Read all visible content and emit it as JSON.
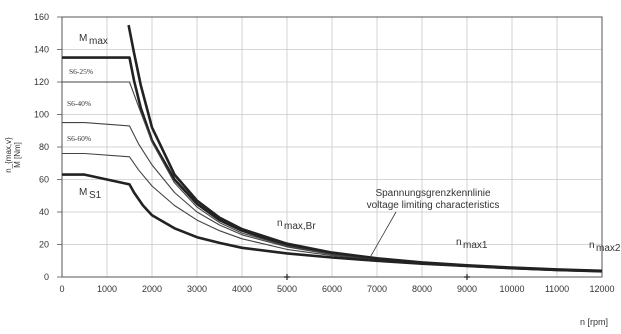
{
  "chart_data": {
    "type": "line",
    "xlabel": "n [rpm]",
    "ylabel": "M [Nm]",
    "ylabel_extra": "n_{max,v}",
    "xlim": [
      0,
      12000
    ],
    "ylim": [
      0,
      160
    ],
    "xticks": [
      0,
      1000,
      2000,
      3000,
      4000,
      5000,
      6000,
      7000,
      8000,
      9000,
      10000,
      11000,
      12000
    ],
    "yticks": [
      0,
      20,
      40,
      60,
      80,
      100,
      120,
      140,
      160
    ],
    "grid": true,
    "colors": {
      "heavy": "#222222",
      "light": "#444444",
      "grid": "#c8c8c8"
    },
    "series": [
      {
        "name": "M_max",
        "heavy": true,
        "x": [
          0,
          1500,
          1600,
          1750,
          2000,
          2500,
          3000,
          3500,
          4000,
          5000,
          6000,
          7000,
          8000,
          9000,
          10000,
          11000,
          12000
        ],
        "y": [
          135,
          135,
          121,
          104,
          84,
          60,
          45,
          35,
          28.5,
          19.5,
          14.5,
          11,
          8.5,
          6.9,
          5.5,
          4.4,
          3.6
        ]
      },
      {
        "name": "S6-25%",
        "heavy": false,
        "x": [
          0,
          1500,
          1700,
          2000,
          2500,
          3000,
          3500,
          4000,
          5000,
          6000,
          7000,
          8000,
          9000,
          10000,
          11000,
          12000
        ],
        "y": [
          120,
          120,
          105,
          83,
          58,
          43,
          33.5,
          27,
          19,
          14,
          11,
          8.5,
          6.9,
          5.5,
          4.4,
          3.6
        ]
      },
      {
        "name": "S6-40%",
        "heavy": false,
        "x": [
          0,
          500,
          1500,
          1700,
          2000,
          2500,
          3000,
          3500,
          4000,
          5000,
          6000,
          7000,
          8000,
          9000,
          10000,
          11000,
          12000
        ],
        "y": [
          95,
          95,
          93,
          82,
          69,
          52,
          40,
          32,
          26,
          18.5,
          13.8,
          10.8,
          8.5,
          6.9,
          5.5,
          4.4,
          3.6
        ]
      },
      {
        "name": "S6-60%",
        "heavy": false,
        "x": [
          0,
          500,
          1500,
          1700,
          2000,
          2500,
          3000,
          3500,
          4000,
          5000,
          6000,
          7000,
          8000,
          9000,
          10000,
          11000,
          12000
        ],
        "y": [
          76,
          76,
          74,
          66,
          56,
          44,
          35,
          28.5,
          23.5,
          17,
          13.2,
          10.5,
          8.4,
          6.9,
          5.5,
          4.4,
          3.6
        ]
      },
      {
        "name": "M_S1",
        "heavy": true,
        "x": [
          0,
          500,
          1500,
          1600,
          1800,
          2000,
          2500,
          3000,
          3500,
          4000,
          5000,
          6000,
          7000,
          8000,
          9000,
          10000,
          11000,
          12000
        ],
        "y": [
          63,
          63,
          57,
          52,
          44,
          38,
          30,
          24.5,
          21,
          18,
          14.5,
          12,
          10,
          8.2,
          6.8,
          5.4,
          4.3,
          3.5
        ]
      },
      {
        "name": "voltage limit",
        "heavy": true,
        "x": [
          1480,
          1600,
          1750,
          2000,
          2500,
          3000,
          3500,
          4000,
          5000,
          6000,
          7000,
          8000,
          9000,
          10000,
          11000,
          12000
        ],
        "y": [
          155,
          138,
          118,
          92,
          63,
          47,
          36.5,
          29.5,
          20.5,
          15,
          11.5,
          9,
          7.2,
          5.8,
          4.7,
          3.8
        ]
      }
    ],
    "annotations": {
      "mmax": {
        "main": "M",
        "sub": "max"
      },
      "ms1": {
        "main": "M",
        "sub": "S1"
      },
      "s6_25": "S6-25%",
      "s6_40": "S6-40%",
      "s6_60": "S6-60%",
      "nmaxbr": {
        "main": "n",
        "sub": "max,Br"
      },
      "nmax1": {
        "main": "n",
        "sub": "max1"
      },
      "nmax2": {
        "main": "n",
        "sub": "max2"
      },
      "spannung_de": "Spannungsgrenzkennlinie",
      "spannung_en": "voltage limiting characteristics"
    },
    "markers_x": [
      5000,
      9000
    ]
  }
}
